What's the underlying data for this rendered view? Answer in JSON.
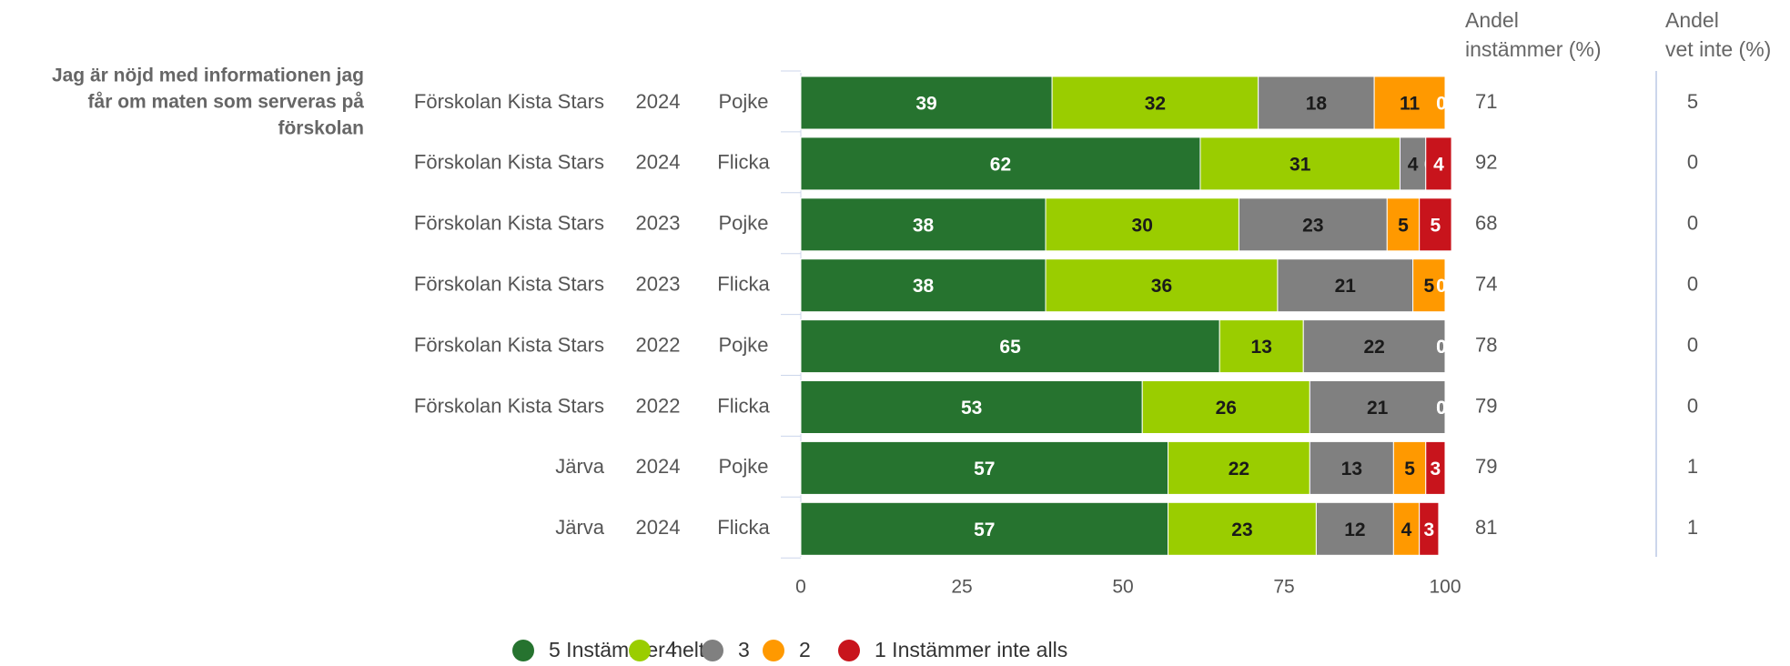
{
  "chart_data": {
    "type": "bar",
    "orientation": "horizontal",
    "stacked": "percent",
    "question": "Jag är nöjd med informationen jag får om maten som serveras på förskolan",
    "question_lines": [
      "Jag är nöjd med informationen jag",
      "får om maten som serveras på",
      "förskolan"
    ],
    "rows": [
      {
        "unit": "Förskolan Kista Stars",
        "year": "2024",
        "gender": "Pojke",
        "values": [
          39,
          32,
          18,
          11,
          0
        ],
        "agree": 71,
        "dont_know": 5
      },
      {
        "unit": "Förskolan Kista Stars",
        "year": "2024",
        "gender": "Flicka",
        "values": [
          62,
          31,
          4,
          0,
          4
        ],
        "agree": 92,
        "dont_know": 0
      },
      {
        "unit": "Förskolan Kista Stars",
        "year": "2023",
        "gender": "Pojke",
        "values": [
          38,
          30,
          23,
          5,
          5
        ],
        "agree": 68,
        "dont_know": 0
      },
      {
        "unit": "Förskolan Kista Stars",
        "year": "2023",
        "gender": "Flicka",
        "values": [
          38,
          36,
          21,
          5,
          0
        ],
        "agree": 74,
        "dont_know": 0
      },
      {
        "unit": "Förskolan Kista Stars",
        "year": "2022",
        "gender": "Pojke",
        "values": [
          65,
          13,
          22,
          0,
          0
        ],
        "agree": 78,
        "dont_know": 0
      },
      {
        "unit": "Förskolan Kista Stars",
        "year": "2022",
        "gender": "Flicka",
        "values": [
          53,
          26,
          21,
          0,
          0
        ],
        "agree": 79,
        "dont_know": 0
      },
      {
        "unit": "Järva",
        "year": "2024",
        "gender": "Pojke",
        "values": [
          57,
          22,
          13,
          5,
          3
        ],
        "agree": 79,
        "dont_know": 1
      },
      {
        "unit": "Järva",
        "year": "2024",
        "gender": "Flicka",
        "values": [
          57,
          23,
          12,
          4,
          3
        ],
        "agree": 81,
        "dont_know": 1
      }
    ],
    "series": [
      {
        "name": "5 Instämmer helt",
        "color": "#26732f",
        "label_color": "#ffffff"
      },
      {
        "name": "4",
        "color": "#9acd00",
        "label_color": "#1a1a1a"
      },
      {
        "name": "3",
        "color": "#808080",
        "label_color": "#1a1a1a"
      },
      {
        "name": "2",
        "color": "#ff9900",
        "label_color": "#1a1a1a"
      },
      {
        "name": "1 Instämmer inte alls",
        "color": "#c8141c",
        "label_color": "#ffffff"
      }
    ],
    "xlim": [
      0,
      100
    ],
    "xticks": [
      "0",
      "25",
      "50",
      "75",
      "100"
    ],
    "column_headers": {
      "agree": [
        "Andel",
        "instämmer (%)"
      ],
      "dont_know": [
        "Andel",
        "vet inte (%)"
      ]
    },
    "legend_position": "bottom",
    "grid": false
  }
}
